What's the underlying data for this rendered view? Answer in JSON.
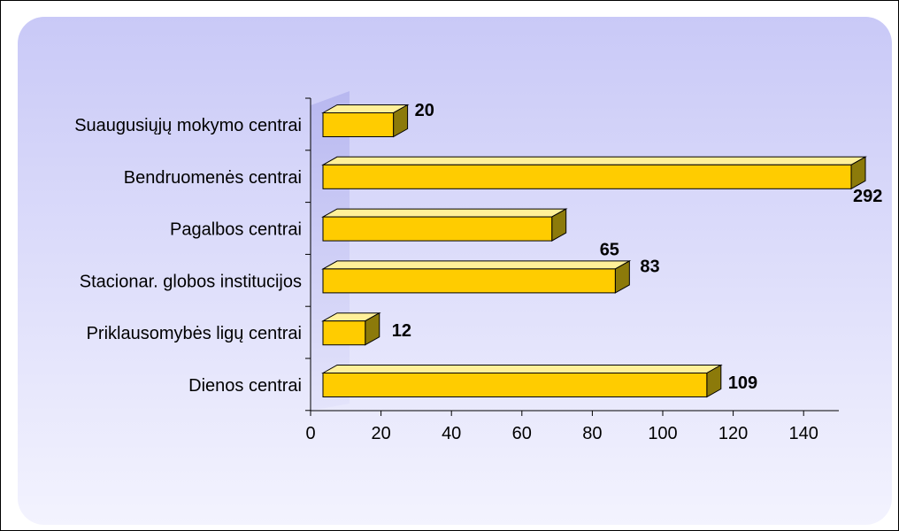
{
  "chart_data": {
    "type": "bar",
    "orientation": "horizontal",
    "three_d": true,
    "categories": [
      "Suaugusiųjų mokymo centrai",
      "Bendruomenės centrai",
      "Pagalbos centrai",
      "Stacionar. globos institucijos",
      "Priklausomybės ligų centrai",
      "Dienos centrai"
    ],
    "values": [
      20,
      292,
      65,
      83,
      12,
      109
    ],
    "data_labels": [
      "20",
      "292",
      "65",
      "83",
      "12",
      "109"
    ],
    "xlim": [
      0,
      150
    ],
    "x_ticks": [
      0,
      20,
      40,
      60,
      80,
      100,
      120,
      140
    ],
    "x_tick_labels": [
      "0",
      "20",
      "40",
      "60",
      "80",
      "100",
      "120",
      "140"
    ],
    "title": "",
    "xlabel": "",
    "ylabel": "",
    "legend": "none",
    "grid": false,
    "colors": {
      "bar_front": "#FFCC00",
      "bar_top": "#FFF099",
      "bar_side": "#8C7A0A",
      "plot_bg_top": "#C9C9F7",
      "plot_bg_bottom": "#F3F3FE",
      "wall": "#B8B8F0"
    }
  }
}
